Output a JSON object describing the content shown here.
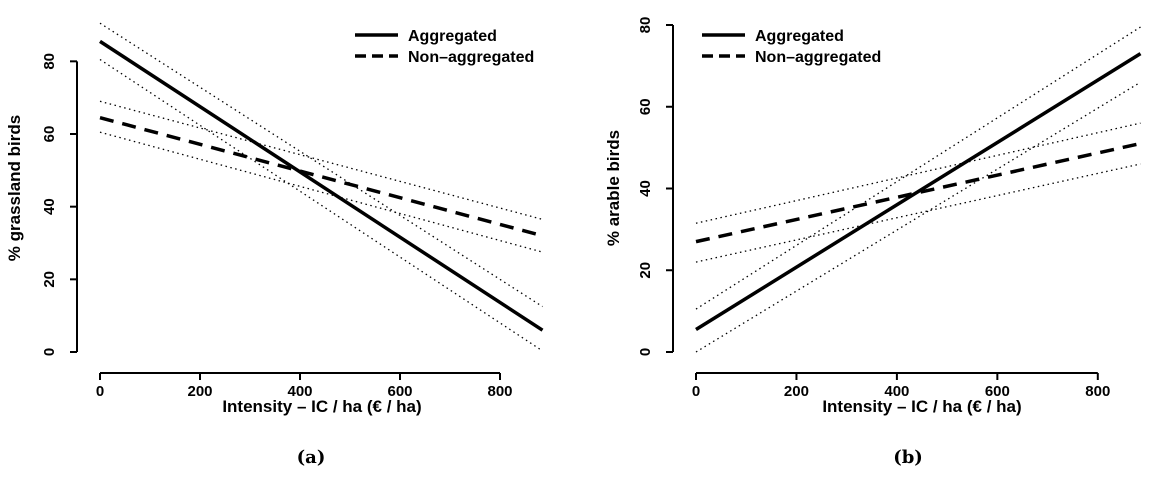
{
  "chart_data": [
    {
      "type": "line",
      "caption": "(a)",
      "xlabel": "Intensity – IC / ha (€ / ha)",
      "ylabel": "% grassland birds",
      "xlim": [
        0,
        890
      ],
      "ylim": [
        0,
        90
      ],
      "xticks": [
        0,
        200,
        400,
        600,
        800
      ],
      "yticks": [
        0,
        20,
        40,
        60,
        80
      ],
      "legend_position": "top-right",
      "grid": false,
      "series": [
        {
          "name": "Aggregated",
          "style": "solid",
          "x": [
            0,
            885
          ],
          "y": [
            85.5,
            6
          ],
          "ci_upper": [
            90.5,
            12.5
          ],
          "ci_lower": [
            80.5,
            0.3
          ]
        },
        {
          "name": "Non–aggregated",
          "style": "dashed",
          "x": [
            0,
            885
          ],
          "y": [
            64.5,
            32
          ],
          "ci_upper": [
            69,
            36.5
          ],
          "ci_lower": [
            60.5,
            27.5
          ]
        }
      ]
    },
    {
      "type": "line",
      "caption": "(b)",
      "xlabel": "Intensity – IC / ha (€ / ha)",
      "ylabel": "% arable birds",
      "xlim": [
        0,
        890
      ],
      "ylim": [
        0,
        80
      ],
      "xticks": [
        0,
        200,
        400,
        600,
        800
      ],
      "yticks": [
        0,
        20,
        40,
        60,
        80
      ],
      "legend_position": "top-left",
      "grid": false,
      "series": [
        {
          "name": "Aggregated",
          "style": "solid",
          "x": [
            0,
            885
          ],
          "y": [
            5.5,
            73
          ],
          "ci_upper": [
            10.5,
            79.5
          ],
          "ci_lower": [
            0,
            66
          ]
        },
        {
          "name": "Non–aggregated",
          "style": "dashed",
          "x": [
            0,
            885
          ],
          "y": [
            27,
            51
          ],
          "ci_upper": [
            31.5,
            56
          ],
          "ci_lower": [
            22,
            46
          ]
        }
      ]
    }
  ]
}
